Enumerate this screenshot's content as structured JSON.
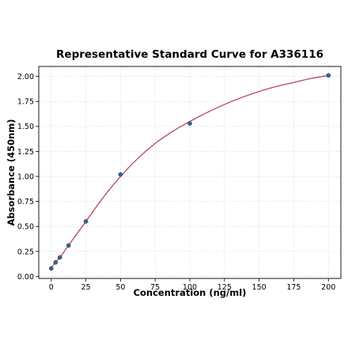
{
  "chart_data": {
    "type": "scatter",
    "title": "Representative Standard Curve for A336116",
    "xlabel": "Concentration (ng/ml)",
    "ylabel": "Absorbance (450nm)",
    "xlim": [
      -9,
      209
    ],
    "ylim": [
      -0.02,
      2.1
    ],
    "x_ticks": [
      0,
      25,
      50,
      75,
      100,
      125,
      150,
      175,
      200
    ],
    "y_ticks": [
      0.0,
      0.25,
      0.5,
      0.75,
      1.0,
      1.25,
      1.5,
      1.75,
      2.0
    ],
    "x_tick_labels": [
      "0",
      "25",
      "50",
      "75",
      "100",
      "125",
      "150",
      "175",
      "200"
    ],
    "y_tick_labels": [
      "0.00",
      "0.25",
      "0.50",
      "0.75",
      "1.00",
      "1.25",
      "1.50",
      "1.75",
      "2.00"
    ],
    "grid": true,
    "legend": "none",
    "series": [
      {
        "kind": "points",
        "color": "#3b5f8f",
        "x": [
          0,
          3.125,
          6.25,
          12.5,
          25,
          50,
          100,
          200
        ],
        "y": [
          0.08,
          0.14,
          0.19,
          0.31,
          0.55,
          1.02,
          1.53,
          2.01
        ]
      },
      {
        "kind": "fit-curve",
        "color": "#b5485a",
        "x": [
          0,
          3.125,
          6.25,
          12.5,
          25,
          37.5,
          50,
          62.5,
          75,
          87.5,
          100,
          112.5,
          125,
          137.5,
          150,
          162.5,
          175,
          187.5,
          200
        ],
        "y": [
          0.09,
          0.14,
          0.19,
          0.31,
          0.55,
          0.79,
          1.0,
          1.18,
          1.33,
          1.45,
          1.55,
          1.64,
          1.72,
          1.79,
          1.85,
          1.9,
          1.94,
          1.98,
          2.01
        ]
      }
    ]
  }
}
